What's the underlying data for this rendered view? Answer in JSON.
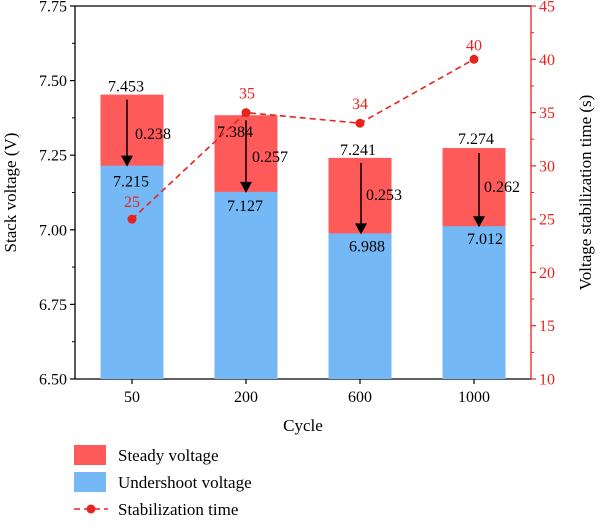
{
  "chart_data": {
    "type": "bar",
    "categories": [
      "50",
      "200",
      "600",
      "1000"
    ],
    "xlabel": "Cycle",
    "ylabel": "Stack voltage (V)",
    "y2label": "Voltage stabilization time (s)",
    "ylim": [
      6.5,
      7.75
    ],
    "y2lim": [
      10,
      45
    ],
    "yticks": [
      "6.50",
      "6.75",
      "7.00",
      "7.25",
      "7.50",
      "7.75"
    ],
    "y2ticks": [
      "10",
      "15",
      "20",
      "25",
      "30",
      "35",
      "40",
      "45"
    ],
    "series": [
      {
        "name": "Steady voltage",
        "kind": "bar",
        "color": "#ff5a5a",
        "values": [
          7.453,
          7.384,
          7.241,
          7.274
        ],
        "labels": [
          "7.453",
          "7.384",
          "7.241",
          "7.274"
        ]
      },
      {
        "name": "Undershoot voltage",
        "kind": "bar",
        "color": "#74b8f5",
        "values": [
          7.215,
          7.127,
          6.988,
          7.012
        ],
        "labels": [
          "7.215",
          "7.127",
          "6.988",
          "7.012"
        ]
      },
      {
        "name": "Stabilization time",
        "kind": "line",
        "axis": "right",
        "style": "dashed",
        "color": "#e8231e",
        "values": [
          25,
          35,
          34,
          40
        ],
        "labels": [
          "25",
          "35",
          "34",
          "40"
        ]
      }
    ],
    "drops": {
      "values": [
        0.238,
        0.257,
        0.253,
        0.262
      ],
      "labels": [
        "0.238",
        "0.257",
        "0.253",
        "0.262"
      ]
    },
    "legend_position": "bottom-left",
    "grid": false
  }
}
